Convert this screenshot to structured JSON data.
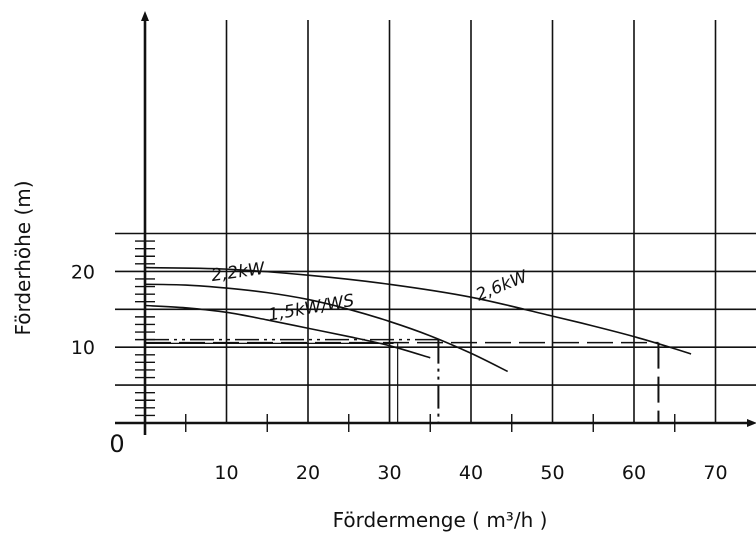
{
  "chart_data": {
    "type": "line",
    "title": "",
    "xlabel": "Fördermenge ( m³/h )",
    "ylabel": "Förderhöhe (m)",
    "xlim": [
      0,
      75
    ],
    "ylim": [
      0,
      25
    ],
    "origin_label": "0",
    "x_ticks": [
      10,
      20,
      30,
      40,
      50,
      60,
      70
    ],
    "y_ticks": [
      10,
      20
    ],
    "grid": true,
    "series": [
      {
        "name": "1,5kW/WS",
        "x": [
          0,
          5,
          10,
          15,
          20,
          25,
          30,
          35
        ],
        "y": [
          15.5,
          15.2,
          14.6,
          13.6,
          12.5,
          11.4,
          10.2,
          8.6
        ]
      },
      {
        "name": "2,2kW",
        "x": [
          0,
          5,
          10,
          15,
          20,
          25,
          30,
          35,
          40,
          44.5
        ],
        "y": [
          18.3,
          18.2,
          17.8,
          17.2,
          16.3,
          15.0,
          13.4,
          11.5,
          9.2,
          6.8
        ]
      },
      {
        "name": "2,6kW",
        "x": [
          0,
          10,
          20,
          30,
          40,
          50,
          55,
          60,
          65,
          67
        ],
        "y": [
          20.5,
          20.3,
          19.5,
          18.3,
          16.6,
          14.1,
          12.8,
          11.4,
          9.8,
          9.1
        ]
      }
    ],
    "reference_lines": [
      {
        "from": [
          0,
          11.0
        ],
        "to": [
          36.0,
          11.0
        ],
        "drop_x": 36.0,
        "style": "dash-dot-dot"
      },
      {
        "from": [
          0,
          10.6
        ],
        "to": [
          63.0,
          10.6
        ],
        "drop_x": 63.0,
        "style": "dash-long"
      },
      {
        "from": [
          0,
          10.5
        ],
        "to": [
          30.5,
          10.5
        ],
        "drop_x": 31.0,
        "style": "thin"
      }
    ]
  }
}
